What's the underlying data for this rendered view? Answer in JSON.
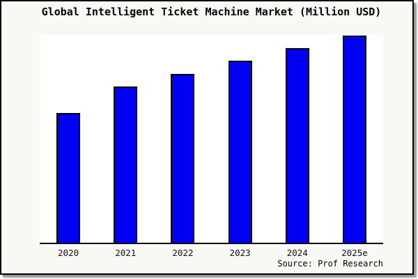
{
  "title": "Global Intelligent Ticket Machine Market (Million USD)",
  "source_credit": "Source: Prof Research",
  "colors": {
    "background": "#f8f8f5",
    "plot_background": "#ffffff",
    "bar_fill": "#0000f5",
    "bar_border": "#000000",
    "axis": "#000000",
    "frame_border": "#000000",
    "shadow": "#9a9a9a"
  },
  "chart_data": {
    "type": "bar",
    "title": "Global Intelligent Ticket Machine Market (Million USD)",
    "categories": [
      "2020",
      "2021",
      "2022",
      "2023",
      "2024",
      "2025e"
    ],
    "values": [
      187,
      226,
      244,
      263,
      281,
      299
    ],
    "xlabel": "",
    "ylabel": "",
    "ylim": [
      0,
      300
    ],
    "value_unit": "relative bar height (no y-axis scale shown in image)",
    "grid": false,
    "legend": false,
    "y_axis_labels_visible": false,
    "bar_color": "#0000f5",
    "annotation": "Source: Prof Research"
  }
}
